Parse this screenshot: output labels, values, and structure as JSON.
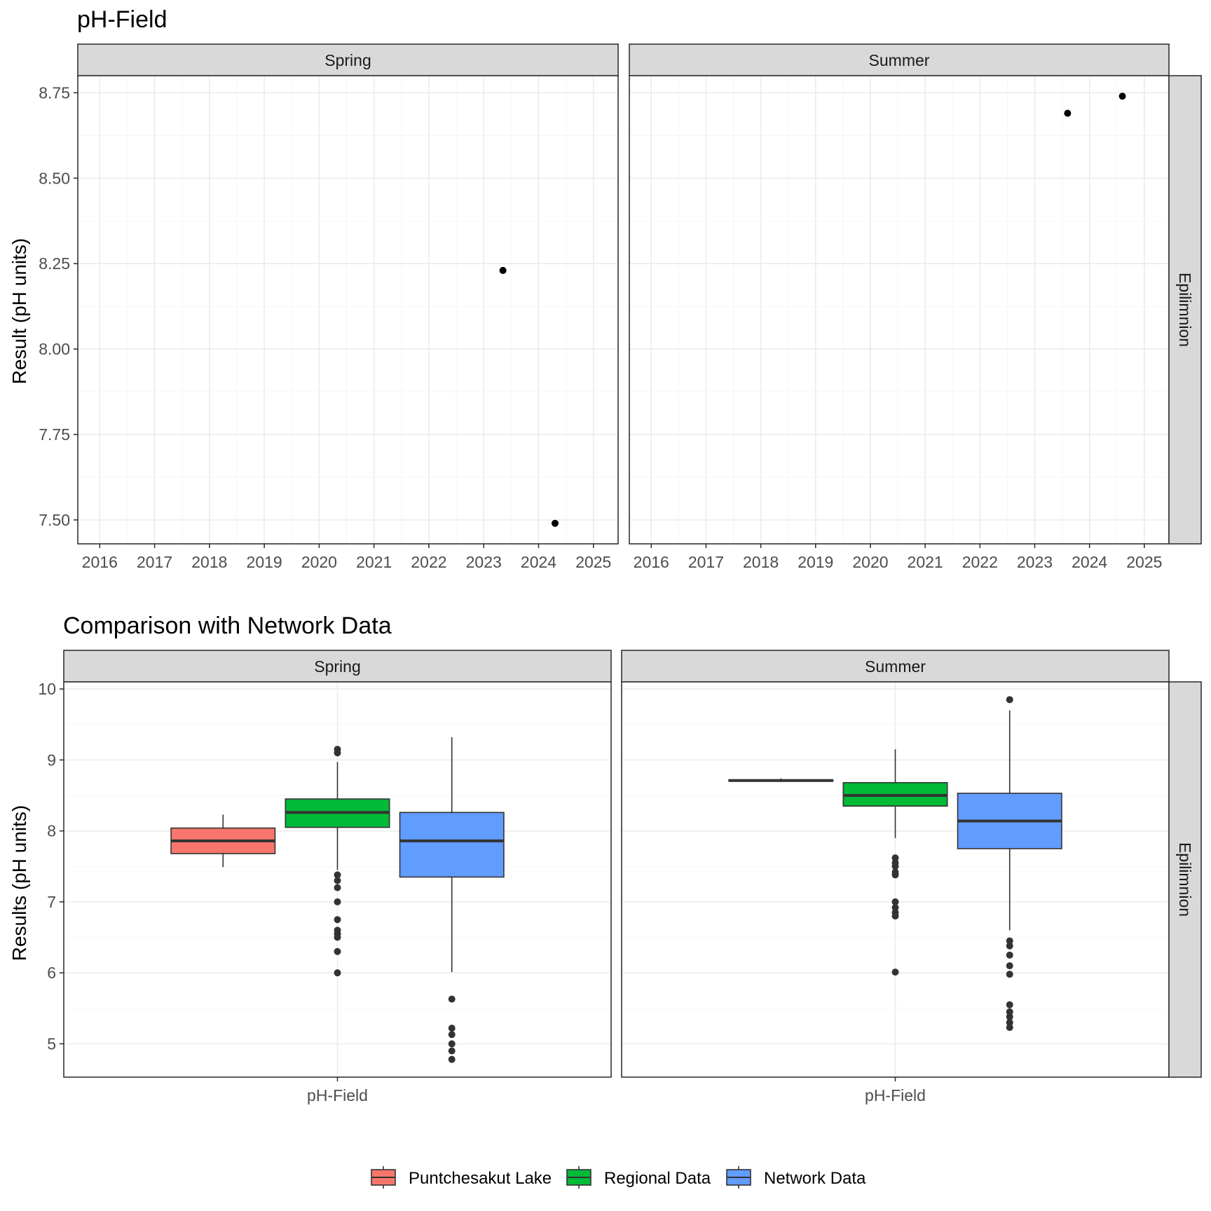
{
  "colors": {
    "Puntchesakut Lake": "#F8766D",
    "Regional Data": "#00BA38",
    "Network Data": "#619CFF"
  },
  "chart_data": [
    {
      "type": "scatter",
      "title": "pH-Field",
      "ylabel": "Result (pH units)",
      "xlabel": "",
      "row_facet": "Epilimnion",
      "x_ticks": [
        "2016",
        "2017",
        "2018",
        "2019",
        "2020",
        "2021",
        "2022",
        "2023",
        "2024",
        "2025"
      ],
      "y_ticks": [
        "7.50",
        "7.75",
        "8.00",
        "8.25",
        "8.50",
        "8.75"
      ],
      "xlim": [
        2015.6,
        2025.45
      ],
      "ylim": [
        7.43,
        8.8
      ],
      "grid": true,
      "panels": [
        {
          "facet": "Spring",
          "points": [
            {
              "x": 2023.35,
              "y": 8.23
            },
            {
              "x": 2024.3,
              "y": 7.49
            }
          ]
        },
        {
          "facet": "Summer",
          "points": [
            {
              "x": 2023.6,
              "y": 8.69
            },
            {
              "x": 2024.6,
              "y": 8.74
            }
          ]
        }
      ]
    },
    {
      "type": "box",
      "title": "Comparison with Network Data",
      "ylabel": "Results (pH units)",
      "xlabel": "",
      "row_facet": "Epilimnion",
      "x_category": "pH-Field",
      "y_ticks": [
        "5",
        "6",
        "7",
        "8",
        "9",
        "10"
      ],
      "ylim": [
        4.53,
        10.1
      ],
      "grid": true,
      "legend": {
        "position": "bottom",
        "entries": [
          "Puntchesakut Lake",
          "Regional Data",
          "Network Data"
        ]
      },
      "panels": [
        {
          "facet": "Spring",
          "boxes": [
            {
              "group": "Puntchesakut Lake",
              "min": 7.49,
              "q1": 7.68,
              "median": 7.86,
              "q3": 8.04,
              "max": 8.23,
              "outliers": []
            },
            {
              "group": "Regional Data",
              "min": 7.45,
              "q1": 8.05,
              "median": 8.26,
              "q3": 8.45,
              "max": 8.97,
              "outliers": [
                9.15,
                9.1,
                7.38,
                7.3,
                7.2,
                7.0,
                6.75,
                6.6,
                6.55,
                6.5,
                6.3,
                6.0
              ]
            },
            {
              "group": "Network Data",
              "min": 6.01,
              "q1": 7.35,
              "median": 7.86,
              "q3": 8.26,
              "max": 9.32,
              "outliers": [
                5.63,
                5.22,
                5.13,
                5.0,
                4.9,
                4.78
              ]
            }
          ]
        },
        {
          "facet": "Summer",
          "boxes": [
            {
              "group": "Puntchesakut Lake",
              "min": 8.69,
              "q1": 8.7,
              "median": 8.71,
              "q3": 8.72,
              "max": 8.74,
              "outliers": []
            },
            {
              "group": "Regional Data",
              "min": 7.9,
              "q1": 8.35,
              "median": 8.5,
              "q3": 8.68,
              "max": 9.15,
              "outliers": [
                7.62,
                7.55,
                7.5,
                7.42,
                7.38,
                7.0,
                6.92,
                6.85,
                6.8,
                6.01
              ]
            },
            {
              "group": "Network Data",
              "min": 6.6,
              "q1": 7.75,
              "median": 8.14,
              "q3": 8.53,
              "max": 9.7,
              "outliers": [
                9.85,
                6.45,
                6.38,
                6.25,
                6.1,
                5.98,
                5.55,
                5.45,
                5.38,
                5.3,
                5.23
              ]
            }
          ]
        }
      ]
    }
  ]
}
